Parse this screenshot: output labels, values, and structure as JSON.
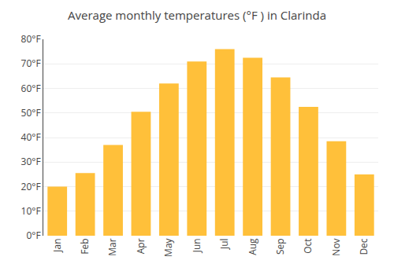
{
  "chart_data": {
    "type": "bar",
    "title": "Average monthly temperatures (°F ) in Clarinda",
    "categories": [
      "Jan",
      "Feb",
      "Mar",
      "Apr",
      "May",
      "Jun",
      "Jul",
      "Aug",
      "Sep",
      "Oct",
      "Nov",
      "Dec"
    ],
    "values": [
      20,
      25.5,
      37,
      50.5,
      62,
      71,
      76,
      72.5,
      64.5,
      52.5,
      38.5,
      25
    ],
    "color": "#FFC03A",
    "ylim": [
      0,
      80
    ],
    "yticks": [
      {
        "value": 0,
        "label": "0°F"
      },
      {
        "value": 10,
        "label": "10°F"
      },
      {
        "value": 20,
        "label": "20°F"
      },
      {
        "value": 30,
        "label": "30°F"
      },
      {
        "value": 40,
        "label": "40°F"
      },
      {
        "value": 50,
        "label": "50°F"
      },
      {
        "value": 60,
        "label": "60°F"
      },
      {
        "value": 70,
        "label": "70°F"
      },
      {
        "value": 80,
        "label": "80°F"
      }
    ],
    "grid": true
  }
}
